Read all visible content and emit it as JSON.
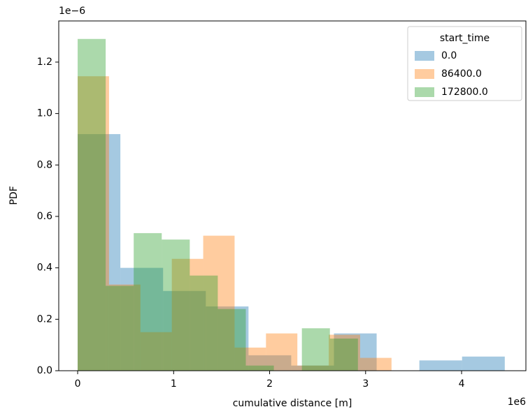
{
  "chart_data": {
    "type": "histogram",
    "xlabel": "cumulative distance [m]",
    "ylabel": "PDF",
    "x_offset_label": "1e6",
    "y_offset_label": "1e−6",
    "legend_title": "start_time",
    "legend": "upper right",
    "xlim": [
      -0.197,
      4.67
    ],
    "ylim": [
      0,
      1.36
    ],
    "xticks": [
      0,
      1,
      2,
      3,
      4
    ],
    "yticks": [
      {
        "value": 0,
        "label": "0.0"
      },
      0.2,
      0.4,
      0.6,
      0.8,
      {
        "value": 1,
        "label": "1.0"
      },
      1.2
    ],
    "alpha": 0.4,
    "series": [
      {
        "name": "0.0",
        "color": "#1f77b4",
        "bins": [
          0,
          0.445,
          0.89,
          1.335,
          1.78,
          2.225,
          2.67,
          3.115,
          3.56,
          4.005,
          4.45
        ],
        "values": [
          0.92,
          0.4,
          0.31,
          0.25,
          0.06,
          0.02,
          0.145,
          0,
          0.04,
          0.055
        ]
      },
      {
        "name": "86400.0",
        "color": "#ff7f0e",
        "bins": [
          0,
          0.327,
          0.654,
          0.981,
          1.308,
          1.635,
          1.962,
          2.289,
          2.616,
          2.943,
          3.27
        ],
        "values": [
          1.145,
          0.335,
          0.15,
          0.435,
          0.525,
          0.09,
          0.145,
          0.02,
          0.14,
          0.05
        ]
      },
      {
        "name": "172800.0",
        "color": "#2ca02c",
        "bins": [
          0,
          0.292,
          0.584,
          0.876,
          1.168,
          1.46,
          1.752,
          2.044,
          2.336,
          2.628,
          2.92
        ],
        "values": [
          1.29,
          0.33,
          0.535,
          0.51,
          0.37,
          0.24,
          0.02,
          0,
          0.165,
          0.125
        ]
      }
    ]
  }
}
